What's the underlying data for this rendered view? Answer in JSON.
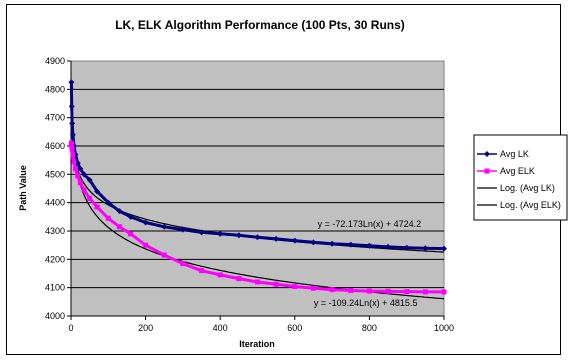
{
  "chart_data": {
    "type": "line",
    "title": "LK, ELK Algorithm Performance (100 Pts, 30 Runs)",
    "xlabel": "Iteration",
    "ylabel": "Path Value",
    "xlim": [
      0,
      1000
    ],
    "ylim": [
      4000,
      4900
    ],
    "x_ticks": [
      0,
      200,
      400,
      600,
      800,
      1000
    ],
    "y_ticks": [
      4000,
      4100,
      4200,
      4300,
      4400,
      4500,
      4600,
      4700,
      4800,
      4900
    ],
    "grid": "horizontal",
    "plot_background": "#c0c0c0",
    "legend_position": "right",
    "series": [
      {
        "name": "Avg LK",
        "color": "#000080",
        "marker": "diamond",
        "x": [
          1,
          2,
          3,
          5,
          8,
          12,
          18,
          25,
          35,
          50,
          70,
          100,
          130,
          160,
          200,
          250,
          300,
          350,
          400,
          450,
          500,
          550,
          600,
          650,
          700,
          750,
          800,
          850,
          900,
          950,
          1000
        ],
        "y": [
          4825,
          4740,
          4680,
          4640,
          4600,
          4570,
          4540,
          4520,
          4500,
          4480,
          4440,
          4400,
          4370,
          4350,
          4330,
          4315,
          4305,
          4295,
          4290,
          4285,
          4278,
          4272,
          4266,
          4260,
          4255,
          4252,
          4248,
          4244,
          4241,
          4239,
          4238
        ]
      },
      {
        "name": "Avg ELK",
        "color": "#ff00ff",
        "marker": "square",
        "x": [
          1,
          2,
          3,
          5,
          8,
          12,
          18,
          25,
          35,
          50,
          70,
          100,
          130,
          160,
          200,
          250,
          300,
          350,
          400,
          450,
          500,
          550,
          600,
          650,
          700,
          750,
          800,
          850,
          900,
          950,
          1000
        ],
        "y": [
          4610,
          4600,
          4590,
          4570,
          4545,
          4520,
          4495,
          4470,
          4445,
          4415,
          4385,
          4345,
          4315,
          4290,
          4250,
          4215,
          4185,
          4160,
          4145,
          4132,
          4120,
          4112,
          4104,
          4098,
          4093,
          4090,
          4088,
          4087,
          4086,
          4085,
          4085
        ]
      },
      {
        "name": "Log. (Avg LK)",
        "color": "#000000",
        "marker": "none",
        "trend": {
          "a": -72.173,
          "b": 4724.2
        }
      },
      {
        "name": "Log. (Avg ELK)",
        "color": "#000000",
        "marker": "none",
        "trend": {
          "a": -109.24,
          "b": 4815.5
        }
      }
    ],
    "annotations": [
      {
        "text": "y = -72.173Ln(x) + 4724.2",
        "x": 800,
        "y": 4315
      },
      {
        "text": "y = -109.24Ln(x) + 4815.5",
        "x": 790,
        "y": 4035
      }
    ]
  }
}
